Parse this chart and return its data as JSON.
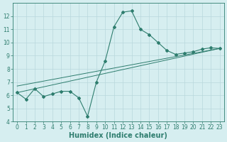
{
  "xlabel": "Humidex (Indice chaleur)",
  "background_color": "#d6eef0",
  "line_color": "#2e7d6e",
  "grid_color": "#b8d8dc",
  "xlim": [
    -0.5,
    23.5
  ],
  "ylim": [
    4,
    13
  ],
  "yticks": [
    4,
    5,
    6,
    7,
    8,
    9,
    10,
    11,
    12
  ],
  "xticks": [
    0,
    1,
    2,
    3,
    4,
    5,
    6,
    7,
    8,
    9,
    10,
    11,
    12,
    13,
    14,
    15,
    16,
    17,
    18,
    19,
    20,
    21,
    22,
    23
  ],
  "line1_x": [
    0,
    1,
    2,
    3,
    4,
    5,
    6,
    7,
    8,
    9,
    10,
    11,
    12,
    13,
    14,
    15,
    16,
    17,
    18,
    19,
    20,
    21,
    22,
    23
  ],
  "line1_y": [
    6.2,
    5.7,
    6.5,
    5.9,
    6.1,
    6.3,
    6.3,
    5.8,
    4.4,
    7.0,
    8.6,
    11.2,
    12.3,
    12.4,
    11.0,
    10.6,
    10.0,
    9.4,
    9.1,
    9.2,
    9.3,
    9.5,
    9.6,
    9.55
  ],
  "line2_x": [
    0,
    23
  ],
  "line2_y": [
    6.2,
    9.55
  ],
  "line3_x": [
    0,
    23
  ],
  "line3_y": [
    6.7,
    9.55
  ],
  "tick_fontsize": 5.5,
  "xlabel_fontsize": 7
}
